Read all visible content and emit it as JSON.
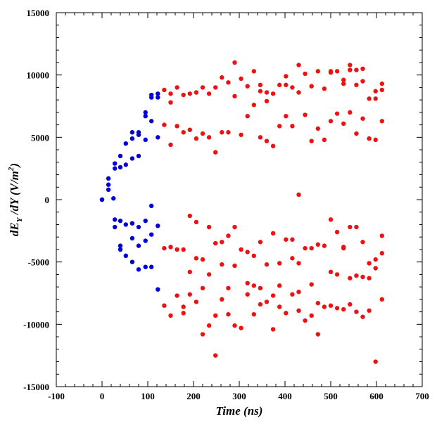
{
  "chart_data": {
    "type": "scatter",
    "title": "",
    "xlabel": "Time (ns)",
    "ylabel": {
      "d": "d",
      "E": "E",
      "E_sub": "Y",
      "mid": " /dY (V/m",
      "sup": "2",
      "close": ")"
    },
    "xlim": [
      -100,
      700
    ],
    "ylim": [
      -15000,
      15000
    ],
    "xticks": [
      -100,
      0,
      100,
      200,
      300,
      400,
      500,
      600,
      700
    ],
    "yticks": [
      -15000,
      -10000,
      -5000,
      0,
      5000,
      10000,
      15000
    ],
    "xtick_labels": [
      "-100",
      "0",
      "100",
      "200",
      "300",
      "400",
      "500",
      "600",
      "700"
    ],
    "ytick_labels": [
      "-15000",
      "-10000",
      "-5000",
      "0",
      "5000",
      "10000",
      "15000"
    ],
    "grid": false,
    "series": [
      {
        "color": "#0000dd",
        "points": [
          [
            0,
            0
          ],
          [
            0,
            0
          ],
          [
            14,
            800
          ],
          [
            14,
            1200
          ],
          [
            14,
            1700
          ],
          [
            25,
            100
          ],
          [
            28,
            2500
          ],
          [
            28,
            2900
          ],
          [
            40,
            2600
          ],
          [
            40,
            3500
          ],
          [
            52,
            2800
          ],
          [
            52,
            4500
          ],
          [
            66,
            3300
          ],
          [
            66,
            4900
          ],
          [
            66,
            5400
          ],
          [
            80,
            3500
          ],
          [
            80,
            5200
          ],
          [
            80,
            5400
          ],
          [
            95,
            4800
          ],
          [
            95,
            6700
          ],
          [
            95,
            7000
          ],
          [
            108,
            6300
          ],
          [
            108,
            8400
          ],
          [
            108,
            8200
          ],
          [
            122,
            8500
          ],
          [
            122,
            8200
          ],
          [
            122,
            5000
          ],
          [
            28,
            -1600
          ],
          [
            28,
            -2200
          ],
          [
            40,
            -1700
          ],
          [
            40,
            -3700
          ],
          [
            40,
            -4000
          ],
          [
            52,
            -2000
          ],
          [
            52,
            -4500
          ],
          [
            66,
            -3100
          ],
          [
            66,
            -1900
          ],
          [
            66,
            -5000
          ],
          [
            80,
            -2200
          ],
          [
            80,
            -3700
          ],
          [
            80,
            -5600
          ],
          [
            95,
            -1700
          ],
          [
            95,
            -3300
          ],
          [
            95,
            -5400
          ],
          [
            108,
            -500
          ],
          [
            108,
            -2800
          ],
          [
            108,
            -5400
          ],
          [
            122,
            -2100
          ],
          [
            122,
            -7200
          ]
        ]
      },
      {
        "color": "#ee1111",
        "points": [
          [
            136,
            8800
          ],
          [
            136,
            6000
          ],
          [
            136,
            -3900
          ],
          [
            136,
            -8500
          ],
          [
            150,
            8500
          ],
          [
            150,
            7800
          ],
          [
            150,
            4400
          ],
          [
            150,
            -3800
          ],
          [
            150,
            -9300
          ],
          [
            164,
            9000
          ],
          [
            164,
            5900
          ],
          [
            164,
            -4000
          ],
          [
            164,
            -7700
          ],
          [
            178,
            8400
          ],
          [
            178,
            5400
          ],
          [
            178,
            -4000
          ],
          [
            178,
            -8600
          ],
          [
            178,
            -9100
          ],
          [
            192,
            8500
          ],
          [
            192,
            5600
          ],
          [
            192,
            -1300
          ],
          [
            192,
            -5800
          ],
          [
            192,
            -7600
          ],
          [
            206,
            8600
          ],
          [
            206,
            4900
          ],
          [
            206,
            -1800
          ],
          [
            206,
            -4700
          ],
          [
            206,
            -8200
          ],
          [
            220,
            9000
          ],
          [
            220,
            5300
          ],
          [
            220,
            -4800
          ],
          [
            220,
            -7100
          ],
          [
            220,
            -10800
          ],
          [
            234,
            8500
          ],
          [
            234,
            5000
          ],
          [
            234,
            -2200
          ],
          [
            234,
            -6000
          ],
          [
            234,
            -10100
          ],
          [
            248,
            9000
          ],
          [
            248,
            3800
          ],
          [
            248,
            -3500
          ],
          [
            248,
            -9300
          ],
          [
            248,
            -12500
          ],
          [
            262,
            9800
          ],
          [
            262,
            5400
          ],
          [
            262,
            -3400
          ],
          [
            262,
            -5200
          ],
          [
            262,
            -8000
          ],
          [
            276,
            9400
          ],
          [
            276,
            5400
          ],
          [
            276,
            -2900
          ],
          [
            276,
            -7100
          ],
          [
            276,
            -9200
          ],
          [
            290,
            11000
          ],
          [
            290,
            8300
          ],
          [
            290,
            -2200
          ],
          [
            290,
            -5300
          ],
          [
            290,
            -10100
          ],
          [
            304,
            9700
          ],
          [
            304,
            5200
          ],
          [
            304,
            -4000
          ],
          [
            304,
            -10300
          ],
          [
            318,
            9100
          ],
          [
            318,
            6700
          ],
          [
            318,
            -4200
          ],
          [
            318,
            -6700
          ],
          [
            318,
            -7600
          ],
          [
            332,
            10300
          ],
          [
            332,
            7600
          ],
          [
            332,
            -4500
          ],
          [
            332,
            -6900
          ],
          [
            332,
            -9200
          ],
          [
            346,
            9200
          ],
          [
            346,
            8700
          ],
          [
            346,
            5000
          ],
          [
            346,
            -3400
          ],
          [
            346,
            -7100
          ],
          [
            346,
            -8400
          ],
          [
            360,
            8600
          ],
          [
            360,
            7900
          ],
          [
            360,
            4700
          ],
          [
            360,
            -5200
          ],
          [
            360,
            -8200
          ],
          [
            374,
            8500
          ],
          [
            374,
            4300
          ],
          [
            374,
            -2700
          ],
          [
            374,
            -7700
          ],
          [
            374,
            -10400
          ],
          [
            388,
            9200
          ],
          [
            388,
            5900
          ],
          [
            388,
            -5100
          ],
          [
            388,
            -6900
          ],
          [
            388,
            -8600
          ],
          [
            402,
            9900
          ],
          [
            402,
            9200
          ],
          [
            402,
            6700
          ],
          [
            402,
            -3200
          ],
          [
            402,
            -9100
          ],
          [
            416,
            9000
          ],
          [
            416,
            5900
          ],
          [
            416,
            -3200
          ],
          [
            416,
            -4700
          ],
          [
            416,
            -7600
          ],
          [
            430,
            10800
          ],
          [
            430,
            8600
          ],
          [
            430,
            400
          ],
          [
            430,
            -5100
          ],
          [
            430,
            -7400
          ],
          [
            430,
            -8900
          ],
          [
            444,
            10100
          ],
          [
            444,
            6800
          ],
          [
            444,
            -3900
          ],
          [
            444,
            -9700
          ],
          [
            458,
            9100
          ],
          [
            458,
            4700
          ],
          [
            458,
            -3900
          ],
          [
            458,
            -6800
          ],
          [
            458,
            -9300
          ],
          [
            472,
            10300
          ],
          [
            472,
            5700
          ],
          [
            472,
            -3600
          ],
          [
            472,
            -8300
          ],
          [
            472,
            -10800
          ],
          [
            486,
            8900
          ],
          [
            486,
            4800
          ],
          [
            486,
            -3700
          ],
          [
            486,
            -8600
          ],
          [
            500,
            10200
          ],
          [
            500,
            10300
          ],
          [
            500,
            6300
          ],
          [
            500,
            -1600
          ],
          [
            500,
            -5800
          ],
          [
            500,
            -8500
          ],
          [
            514,
            10300
          ],
          [
            514,
            6900
          ],
          [
            514,
            -2600
          ],
          [
            514,
            -6000
          ],
          [
            514,
            -8700
          ],
          [
            528,
            9600
          ],
          [
            528,
            9300
          ],
          [
            528,
            6100
          ],
          [
            528,
            -3800
          ],
          [
            528,
            -3900
          ],
          [
            528,
            -8800
          ],
          [
            542,
            10800
          ],
          [
            542,
            10400
          ],
          [
            542,
            7000
          ],
          [
            542,
            -2200
          ],
          [
            542,
            -6300
          ],
          [
            542,
            -8400
          ],
          [
            556,
            10400
          ],
          [
            556,
            9200
          ],
          [
            556,
            5300
          ],
          [
            556,
            -2200
          ],
          [
            556,
            -6100
          ],
          [
            556,
            -9000
          ],
          [
            570,
            10500
          ],
          [
            570,
            9500
          ],
          [
            570,
            6500
          ],
          [
            570,
            -3400
          ],
          [
            570,
            -6200
          ],
          [
            570,
            -9400
          ],
          [
            584,
            8100
          ],
          [
            584,
            4900
          ],
          [
            584,
            -5100
          ],
          [
            584,
            -6300
          ],
          [
            584,
            -8900
          ],
          [
            598,
            8700
          ],
          [
            598,
            8100
          ],
          [
            598,
            4800
          ],
          [
            598,
            -4800
          ],
          [
            598,
            -5500
          ],
          [
            598,
            -13000
          ],
          [
            612,
            9300
          ],
          [
            612,
            8800
          ],
          [
            612,
            6300
          ],
          [
            612,
            -2900
          ],
          [
            612,
            -4300
          ],
          [
            612,
            -8000
          ]
        ]
      }
    ]
  }
}
